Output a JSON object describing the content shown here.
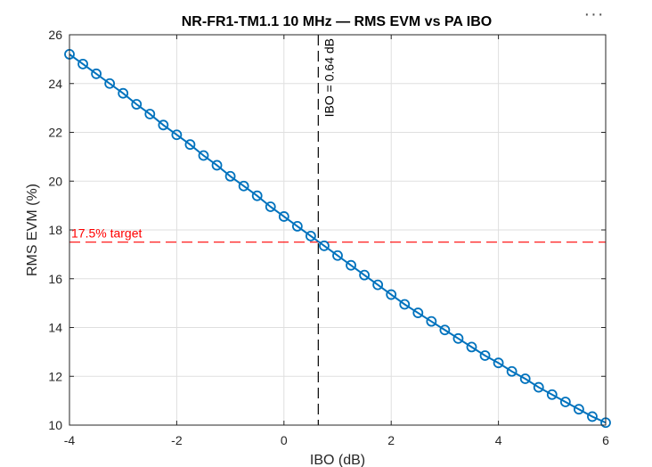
{
  "toolbar": {
    "more_label": "···"
  },
  "chart_data": {
    "type": "line",
    "title": "NR-FR1-TM1.1 10 MHz — RMS EVM vs PA IBO",
    "xlabel": "IBO (dB)",
    "ylabel": "RMS EVM (%)",
    "xlim": [
      -4,
      6
    ],
    "ylim": [
      10,
      26
    ],
    "xticks": [
      -4,
      -2,
      0,
      2,
      4,
      6
    ],
    "yticks": [
      10,
      12,
      14,
      16,
      18,
      20,
      22,
      24,
      26
    ],
    "xtick_labels": [
      "-4",
      "-2",
      "0",
      "2",
      "4",
      "6"
    ],
    "ytick_labels": [
      "10",
      "12",
      "14",
      "16",
      "18",
      "20",
      "22",
      "24",
      "26"
    ],
    "grid": true,
    "series": [
      {
        "color": "#0072BD",
        "marker": "circle",
        "x": [
          -4,
          -3.75,
          -3.5,
          -3.25,
          -3,
          -2.75,
          -2.5,
          -2.25,
          -2,
          -1.75,
          -1.5,
          -1.25,
          -1,
          -0.75,
          -0.5,
          -0.25,
          0,
          0.25,
          0.5,
          0.75,
          1,
          1.25,
          1.5,
          1.75,
          2,
          2.25,
          2.5,
          2.75,
          3,
          3.25,
          3.5,
          3.75,
          4,
          4.25,
          4.5,
          4.75,
          5,
          5.25,
          5.5,
          5.75,
          6
        ],
        "y": [
          25.2,
          24.8,
          24.4,
          24.0,
          23.6,
          23.15,
          22.75,
          22.3,
          21.9,
          21.5,
          21.05,
          20.65,
          20.2,
          19.8,
          19.4,
          18.95,
          18.55,
          18.15,
          17.75,
          17.35,
          16.95,
          16.55,
          16.15,
          15.75,
          15.35,
          14.95,
          14.6,
          14.25,
          13.9,
          13.55,
          13.2,
          12.85,
          12.55,
          12.2,
          11.9,
          11.55,
          11.25,
          10.95,
          10.65,
          10.35,
          10.1
        ]
      }
    ],
    "annotations": {
      "target": {
        "y": 17.5,
        "label": "17.5% target",
        "color": "#FF0000"
      },
      "ibo_marker": {
        "x": 0.64,
        "label": "IBO = 0.64  dB",
        "color": "#000000"
      }
    }
  }
}
